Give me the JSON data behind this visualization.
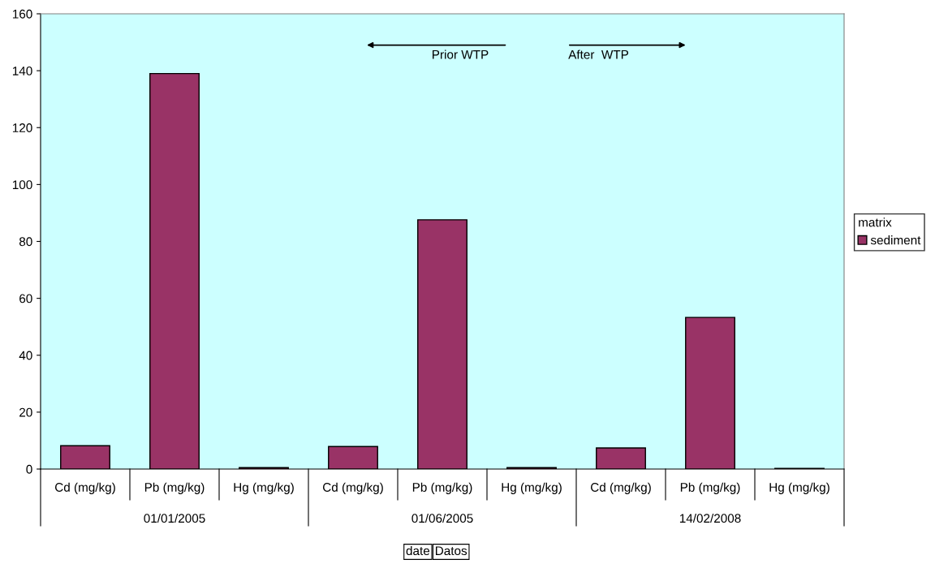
{
  "chart_data": {
    "type": "bar",
    "categories": [
      "Cd (mg/kg)",
      "Pb (mg/kg)",
      "Hg (mg/kg)",
      "Cd (mg/kg)",
      "Pb (mg/kg)",
      "Hg (mg/kg)",
      "Cd (mg/kg)",
      "Pb (mg/kg)",
      "Hg (mg/kg)"
    ],
    "series": [
      {
        "name": "sediment",
        "color": "#993366",
        "values": [
          8.2,
          139,
          0.5,
          7.9,
          87.6,
          0.5,
          7.4,
          53.3,
          0.2
        ]
      }
    ],
    "legend_title": "matrix",
    "legend": "right",
    "annotations": [
      "01/01/2005",
      "01/06/2005",
      "14/02/2008",
      "Prior WTP",
      "After  WTP",
      "date",
      "Datos"
    ],
    "ylim": [
      0,
      160
    ],
    "yticks": [
      0,
      20,
      40,
      60,
      80,
      100,
      120,
      140,
      160
    ],
    "grid": false
  }
}
